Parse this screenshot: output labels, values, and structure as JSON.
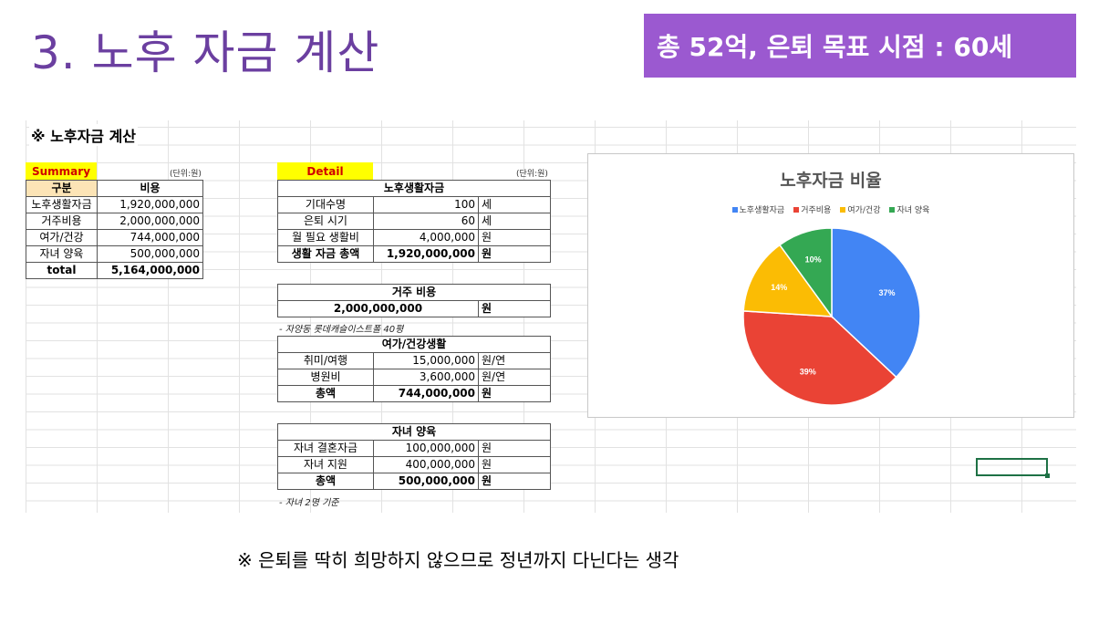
{
  "slide": {
    "title": "3. 노후 자금 계산",
    "banner": "총 52억, 은퇴 목표 시점  : 60세",
    "footer": "※ 은퇴를 딱히 희망하지 않으므로 정년까지 다닌다는 생각"
  },
  "sheet": {
    "title": "※ 노후자금 계산",
    "summary": {
      "label": "Summary",
      "unit": "(단위:원)",
      "headers": [
        "구분",
        "비용"
      ],
      "rows": [
        [
          "노후생활자금",
          "1,920,000,000"
        ],
        [
          "거주비용",
          "2,000,000,000"
        ],
        [
          "여가/건강",
          "744,000,000"
        ],
        [
          "자녀 양육",
          "500,000,000"
        ]
      ],
      "total": [
        "total",
        "5,164,000,000"
      ]
    },
    "detail": {
      "label": "Detail",
      "unit": "(단위:원)",
      "living": {
        "header": "노후생활자금",
        "rows": [
          [
            "기대수명",
            "100",
            "세"
          ],
          [
            "은퇴 시기",
            "60",
            "세"
          ],
          [
            "월 필요 생활비",
            "4,000,000",
            "원"
          ]
        ],
        "total": [
          "생활 자금 총액",
          "1,920,000,000",
          "원"
        ]
      },
      "housing": {
        "header": "거주 비용",
        "value": "2,000,000,000",
        "unit": "원",
        "note": "- 자양동 롯데캐슬이스트폴 40평"
      },
      "leisure": {
        "header": "여가/건강생활",
        "rows": [
          [
            "취미/여행",
            "15,000,000",
            "원/연"
          ],
          [
            "병원비",
            "3,600,000",
            "원/연"
          ]
        ],
        "total": [
          "총액",
          "744,000,000",
          "원"
        ]
      },
      "children": {
        "header": "자녀 양육",
        "rows": [
          [
            "자녀 결혼자금",
            "100,000,000",
            "원"
          ],
          [
            "자녀 지원",
            "400,000,000",
            "원"
          ]
        ],
        "total": [
          "총액",
          "500,000,000",
          "원"
        ],
        "note": "- 자녀 2명 기준"
      }
    }
  },
  "chart_data": {
    "type": "pie",
    "title": "노후자금 비율",
    "categories": [
      "노후생활자금",
      "거주비용",
      "여가/건강",
      "자녀 양육"
    ],
    "values": [
      37,
      39,
      14,
      10
    ],
    "labels": [
      "37%",
      "39%",
      "14%",
      "10%"
    ],
    "colors": [
      "#4285f4",
      "#ea4335",
      "#fbbc04",
      "#34a853"
    ],
    "legend": "top"
  }
}
